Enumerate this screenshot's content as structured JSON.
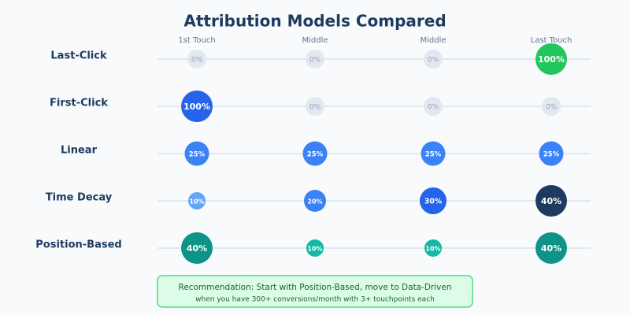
{
  "chart_data": {
    "type": "bubble-matrix",
    "title": "Attribution Models Compared",
    "categories": [
      "1st Touch",
      "Middle",
      "Middle",
      "Last Touch"
    ],
    "empty_color": "#e2e8f0",
    "series": [
      {
        "name": "Last-Click",
        "values": [
          0,
          0,
          0,
          100
        ],
        "value_labels": [
          "0%",
          "0%",
          "0%",
          "100%"
        ],
        "colors": [
          "#e2e8f0",
          "#e2e8f0",
          "#e2e8f0",
          "#22c55e"
        ]
      },
      {
        "name": "First-Click",
        "values": [
          100,
          0,
          0,
          0
        ],
        "value_labels": [
          "100%",
          "0%",
          "0%",
          "0%"
        ],
        "colors": [
          "#2563eb",
          "#e2e8f0",
          "#e2e8f0",
          "#e2e8f0"
        ]
      },
      {
        "name": "Linear",
        "values": [
          25,
          25,
          25,
          25
        ],
        "value_labels": [
          "25%",
          "25%",
          "25%",
          "25%"
        ],
        "colors": [
          "#3b82f6",
          "#3b82f6",
          "#3b82f6",
          "#3b82f6"
        ]
      },
      {
        "name": "Time Decay",
        "values": [
          10,
          20,
          30,
          40
        ],
        "value_labels": [
          "10%",
          "20%",
          "30%",
          "40%"
        ],
        "colors": [
          "#60a5fa",
          "#3b82f6",
          "#2563eb",
          "#1e3a5f"
        ]
      },
      {
        "name": "Position-Based",
        "values": [
          40,
          10,
          10,
          40
        ],
        "value_labels": [
          "40%",
          "10%",
          "10%",
          "40%"
        ],
        "colors": [
          "#0d9488",
          "#14b8a6",
          "#14b8a6",
          "#0d9488"
        ]
      }
    ],
    "annotations": [
      "Recommendation: Start with Position-Based, move to Data-Driven",
      "when you have 300+ conversions/month with 3+ touchpoints each"
    ]
  }
}
